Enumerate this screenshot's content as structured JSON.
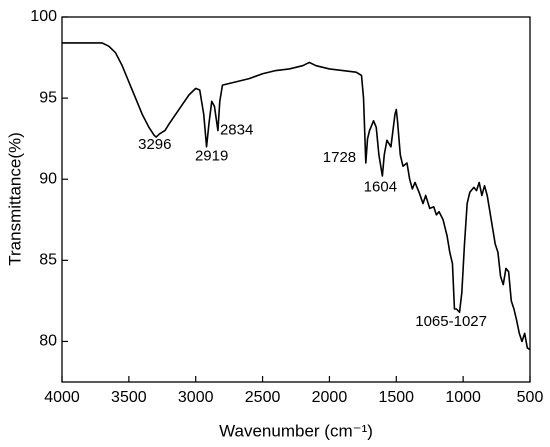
{
  "chart_data": {
    "type": "line",
    "x_label": "Wavenumber (cm⁻¹)",
    "y_label": "Transmittance(%)",
    "color": "#000000",
    "x": [
      4000,
      3800,
      3700,
      3650,
      3600,
      3550,
      3500,
      3450,
      3400,
      3350,
      3310,
      3296,
      3270,
      3230,
      3200,
      3150,
      3100,
      3050,
      3000,
      2970,
      2940,
      2919,
      2900,
      2880,
      2860,
      2834,
      2820,
      2800,
      2700,
      2600,
      2500,
      2400,
      2300,
      2200,
      2150,
      2100,
      2000,
      1900,
      1800,
      1760,
      1745,
      1728,
      1715,
      1700,
      1670,
      1650,
      1630,
      1604,
      1590,
      1570,
      1540,
      1510,
      1500,
      1490,
      1470,
      1450,
      1420,
      1400,
      1380,
      1360,
      1330,
      1300,
      1280,
      1250,
      1220,
      1200,
      1180,
      1150,
      1120,
      1100,
      1080,
      1065,
      1050,
      1027,
      1010,
      990,
      970,
      950,
      920,
      900,
      880,
      860,
      840,
      820,
      800,
      780,
      760,
      740,
      720,
      700,
      680,
      660,
      640,
      620,
      600,
      580,
      560,
      540,
      520,
      500
    ],
    "values": [
      98.4,
      98.4,
      98.4,
      98.2,
      97.8,
      97.0,
      96.0,
      95.0,
      94.0,
      93.2,
      92.7,
      92.6,
      92.8,
      93.0,
      93.4,
      94.0,
      94.6,
      95.2,
      95.6,
      95.5,
      94.0,
      92.0,
      93.5,
      94.8,
      94.5,
      93.0,
      94.8,
      95.8,
      96.0,
      96.2,
      96.5,
      96.7,
      96.8,
      97.0,
      97.2,
      97.0,
      96.8,
      96.7,
      96.6,
      96.4,
      95.0,
      91.0,
      92.5,
      93.0,
      93.6,
      93.2,
      91.5,
      90.2,
      91.5,
      92.4,
      92.0,
      94.0,
      94.3,
      93.5,
      91.5,
      90.8,
      91.0,
      90.0,
      89.4,
      89.8,
      89.2,
      88.5,
      89.0,
      88.2,
      88.3,
      87.8,
      88.0,
      87.5,
      86.5,
      85.5,
      84.8,
      82.0,
      82.0,
      81.8,
      83.0,
      86.0,
      88.5,
      89.2,
      89.5,
      89.3,
      89.8,
      89.0,
      89.6,
      89.0,
      88.0,
      87.0,
      86.0,
      85.5,
      84.0,
      83.5,
      84.5,
      84.3,
      82.5,
      82.0,
      81.3,
      80.5,
      80.0,
      80.5,
      79.6,
      79.5
    ],
    "xlim": [
      4000,
      500
    ],
    "ylim": [
      77.5,
      100
    ],
    "xticks": [
      4000,
      3500,
      3000,
      2500,
      2000,
      1500,
      1000,
      500
    ],
    "yticks": [
      80,
      85,
      90,
      95,
      100
    ],
    "annotations": [
      {
        "text": "3296",
        "x": 3306,
        "y": 92.1
      },
      {
        "text": "2919",
        "x": 2881,
        "y": 91.4
      },
      {
        "text": "2834",
        "x": 2694,
        "y": 93.0
      },
      {
        "text": "1728",
        "x": 1925,
        "y": 91.3
      },
      {
        "text": "1604",
        "x": 1619,
        "y": 89.5
      },
      {
        "text": "1065-1027",
        "x": 1090,
        "y": 81.2
      }
    ]
  }
}
